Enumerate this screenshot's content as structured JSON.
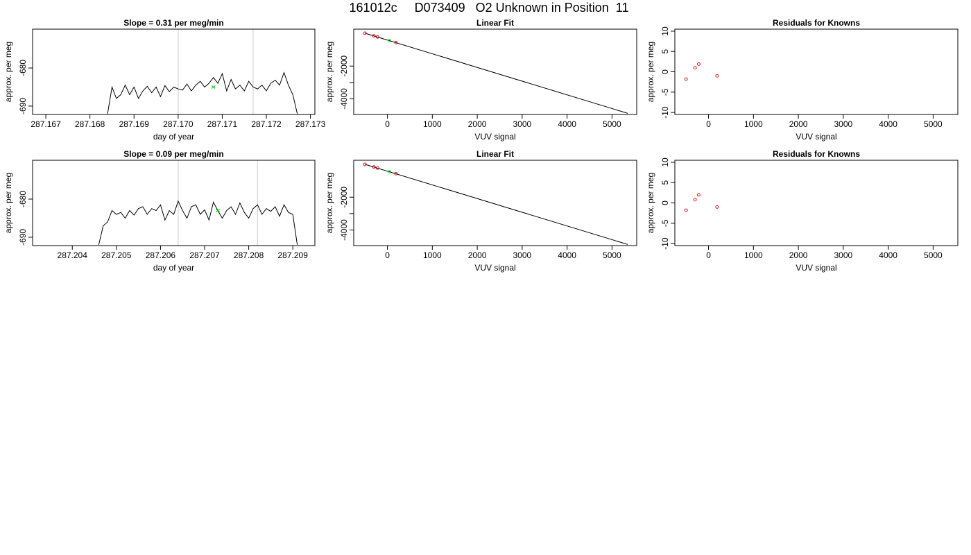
{
  "page": {
    "title": "161012c     D073409   O2 Unknown in Position  11"
  },
  "colors": {
    "trace": "#000000",
    "marker_lines": "#d3d3d3",
    "unknown_point": "#00cd00",
    "known_points": "#cd0000",
    "fit_line": "#000000"
  },
  "chart_data": [
    {
      "id": "r1-trace",
      "type": "line",
      "title": "Slope =  0.31  per meg/min",
      "xlabel": "day of year",
      "ylabel": "approx. per meg",
      "xlim": [
        287.1667,
        287.1731
      ],
      "ylim": [
        -692.2,
        -669.8
      ],
      "xticks": [
        287.167,
        287.168,
        287.169,
        287.17,
        287.171,
        287.172,
        287.173
      ],
      "xtick_labels": [
        "287.167",
        "287.168",
        "287.169",
        "287.170",
        "287.171",
        "287.172",
        "287.173"
      ],
      "yticks": [
        -690,
        -680
      ],
      "ytick_labels": [
        "-690",
        "-680"
      ],
      "vlines": [
        287.17,
        287.1717
      ],
      "unknown_point": {
        "x": 287.1708,
        "y": -685.0
      },
      "series": [
        {
          "x": [
            287.1684,
            287.1685,
            287.1686,
            287.1687,
            287.1688,
            287.1689,
            287.169,
            287.1691,
            287.1692,
            287.1693,
            287.1694,
            287.1695,
            287.1696,
            287.1697,
            287.1698,
            287.1699,
            287.17,
            287.1701,
            287.1702,
            287.1703,
            287.1704,
            287.1705,
            287.1706,
            287.1707,
            287.1708,
            287.1709,
            287.171,
            287.1711,
            287.1712,
            287.1713,
            287.1714,
            287.1715,
            287.1716,
            287.1717,
            287.1718,
            287.1719,
            287.172,
            287.1721,
            287.1722,
            287.1723,
            287.1724,
            287.1725,
            287.1726,
            287.1727
          ],
          "y": [
            -692,
            -685,
            -688,
            -687,
            -684.5,
            -687,
            -685,
            -688,
            -686,
            -684.8,
            -686.5,
            -685,
            -687.5,
            -684.6,
            -686.2,
            -685,
            -685.5,
            -685.8,
            -684.2,
            -686,
            -684.5,
            -683.5,
            -685,
            -684,
            -682.5,
            -684,
            -681.5,
            -686,
            -683,
            -685.5,
            -684.5,
            -686,
            -683.5,
            -685,
            -685.5,
            -684.5,
            -686,
            -684,
            -683.2,
            -684.5,
            -681.2,
            -684.5,
            -687,
            -692
          ]
        }
      ]
    },
    {
      "id": "r1-fit",
      "type": "scatter",
      "title": "Linear Fit",
      "xlabel": "VUV signal",
      "ylabel": "approx. per meg",
      "xlim": [
        -750,
        5550
      ],
      "ylim": [
        -4950,
        250
      ],
      "xticks": [
        0,
        1000,
        2000,
        3000,
        4000,
        5000
      ],
      "xtick_labels": [
        "0",
        "1000",
        "2000",
        "3000",
        "4000",
        "5000"
      ],
      "yticks": [
        -4000,
        -3000,
        -2000
      ],
      "ytick_labels": [
        "-4000",
        "",
        "-2000"
      ],
      "fit_line": {
        "x": [
          -500,
          5350
        ],
        "y": [
          0,
          -4880
        ]
      },
      "known_points": {
        "x": [
          -500,
          -300,
          -220,
          190
        ],
        "y": [
          0,
          -158,
          -225,
          -566
        ]
      },
      "unknown_point": {
        "x": 50,
        "y": -450
      }
    },
    {
      "id": "r1-resid",
      "type": "scatter",
      "title": "Residuals for Knowns",
      "xlabel": "VUV signal",
      "ylabel": "approx. per meg",
      "xlim": [
        -750,
        5550
      ],
      "ylim": [
        -10.5,
        10.5
      ],
      "xticks": [
        0,
        1000,
        2000,
        3000,
        4000,
        5000
      ],
      "xtick_labels": [
        "0",
        "1000",
        "2000",
        "3000",
        "4000",
        "5000"
      ],
      "yticks": [
        -10,
        -5,
        0,
        5,
        10
      ],
      "ytick_labels": [
        "-10",
        "-5",
        "0",
        "5",
        "10"
      ],
      "known_points": {
        "x": [
          -500,
          -300,
          -220,
          190
        ],
        "y": [
          -1.8,
          1.0,
          1.9,
          -1.0
        ]
      }
    },
    {
      "id": "r2-trace",
      "type": "line",
      "title": "Slope =  0.09  per meg/min",
      "xlabel": "day of year",
      "ylabel": "approx. per meg",
      "xlim": [
        287.2031,
        287.2095
      ],
      "ylim": [
        -692.2,
        -669.8
      ],
      "xticks": [
        287.204,
        287.205,
        287.206,
        287.207,
        287.208,
        287.209
      ],
      "xtick_labels": [
        "287.204",
        "287.205",
        "287.206",
        "287.207",
        "287.208",
        "287.209"
      ],
      "yticks": [
        -690,
        -680
      ],
      "ytick_labels": [
        "-690",
        "-680"
      ],
      "vlines": [
        287.2064,
        287.2082
      ],
      "unknown_point": {
        "x": 287.2073,
        "y": -683.0
      },
      "series": [
        {
          "x": [
            287.2046,
            287.2047,
            287.2048,
            287.2049,
            287.205,
            287.2051,
            287.2052,
            287.2053,
            287.2054,
            287.2055,
            287.2056,
            287.2057,
            287.2058,
            287.2059,
            287.206,
            287.2061,
            287.2062,
            287.2063,
            287.2064,
            287.2065,
            287.2066,
            287.2067,
            287.2068,
            287.2069,
            287.207,
            287.2071,
            287.2072,
            287.2073,
            287.2074,
            287.2075,
            287.2076,
            287.2077,
            287.2078,
            287.2079,
            287.208,
            287.2081,
            287.2082,
            287.2083,
            287.2084,
            287.2085,
            287.2086,
            287.2087,
            287.2088,
            287.2089,
            287.209,
            287.2091
          ],
          "y": [
            -692,
            -687,
            -686,
            -683,
            -684,
            -683.5,
            -685,
            -683,
            -684.2,
            -682.5,
            -682,
            -684,
            -682.5,
            -683,
            -681.5,
            -685.5,
            -683,
            -684,
            -680.5,
            -683,
            -685,
            -682,
            -681.5,
            -684,
            -682.8,
            -685.5,
            -680.8,
            -683,
            -685,
            -683,
            -682,
            -684,
            -681,
            -683.5,
            -685,
            -682.5,
            -681.5,
            -684,
            -682.5,
            -683.2,
            -682,
            -684.5,
            -681.5,
            -683.5,
            -684,
            -692
          ]
        }
      ]
    },
    {
      "id": "r2-fit",
      "type": "scatter",
      "title": "Linear Fit",
      "xlabel": "VUV signal",
      "ylabel": "approx. per meg",
      "xlim": [
        -750,
        5550
      ],
      "ylim": [
        -4950,
        250
      ],
      "xticks": [
        0,
        1000,
        2000,
        3000,
        4000,
        5000
      ],
      "xtick_labels": [
        "0",
        "1000",
        "2000",
        "3000",
        "4000",
        "5000"
      ],
      "yticks": [
        -4000,
        -3000,
        -2000
      ],
      "ytick_labels": [
        "-4000",
        "",
        "-2000"
      ],
      "fit_line": {
        "x": [
          -500,
          5350
        ],
        "y": [
          0,
          -4880
        ]
      },
      "known_points": {
        "x": [
          -500,
          -300,
          -220,
          190
        ],
        "y": [
          0,
          -158,
          -225,
          -566
        ]
      },
      "unknown_point": {
        "x": 50,
        "y": -450
      }
    },
    {
      "id": "r2-resid",
      "type": "scatter",
      "title": "Residuals for Knowns",
      "xlabel": "VUV signal",
      "ylabel": "approx. per meg",
      "xlim": [
        -750,
        5550
      ],
      "ylim": [
        -10.5,
        10.5
      ],
      "xticks": [
        0,
        1000,
        2000,
        3000,
        4000,
        5000
      ],
      "xtick_labels": [
        "0",
        "1000",
        "2000",
        "3000",
        "4000",
        "5000"
      ],
      "yticks": [
        -10,
        -5,
        0,
        5,
        10
      ],
      "ytick_labels": [
        "-10",
        "-5",
        "0",
        "5",
        "10"
      ],
      "known_points": {
        "x": [
          -500,
          -300,
          -220,
          190
        ],
        "y": [
          -1.8,
          0.8,
          2.0,
          -1.0
        ]
      }
    }
  ]
}
